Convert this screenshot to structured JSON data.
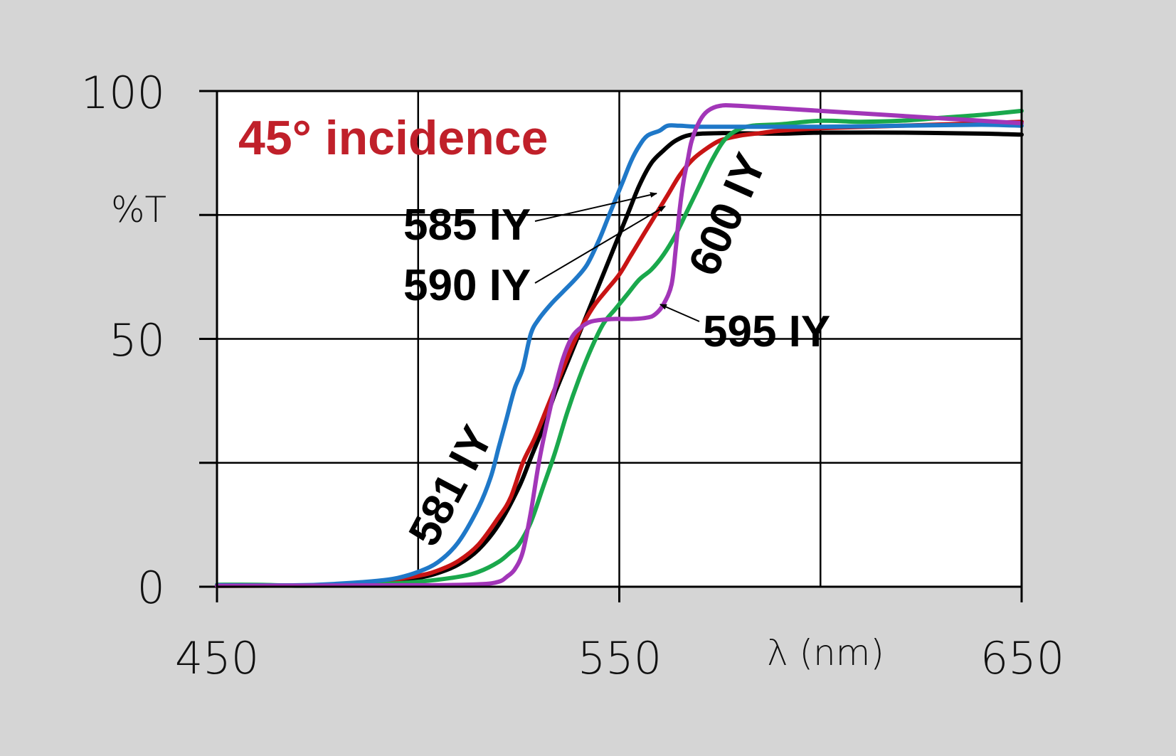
{
  "chart_data": {
    "type": "line",
    "title": "45° incidence",
    "ylabel": "%T",
    "xlabel": "λ (nm)",
    "xlim": [
      450,
      650
    ],
    "ylim": [
      0,
      100
    ],
    "x_ticks": [
      450,
      550,
      650
    ],
    "x_tick_labels": [
      "450",
      "550",
      "650"
    ],
    "x_grid": [
      450,
      500,
      550,
      600,
      650
    ],
    "y_ticks": [
      0,
      50,
      100
    ],
    "y_tick_labels": [
      "0",
      "50",
      "100"
    ],
    "y_grid": [
      0,
      25,
      50,
      75,
      100
    ],
    "grid": true,
    "legend": "none",
    "colors": {
      "background": "#d5d5d5",
      "plot_background": "#ffffff",
      "title": "#c0202a"
    },
    "series": [
      {
        "name": "581 IY",
        "color": "#1f78c8",
        "points": [
          [
            450,
            0.3
          ],
          [
            470,
            0.3
          ],
          [
            480,
            0.6
          ],
          [
            490,
            1.2
          ],
          [
            495,
            1.8
          ],
          [
            500,
            3
          ],
          [
            505,
            5
          ],
          [
            510,
            9
          ],
          [
            515,
            16
          ],
          [
            518,
            22
          ],
          [
            520,
            28
          ],
          [
            522,
            34
          ],
          [
            524,
            40
          ],
          [
            526,
            44
          ],
          [
            528,
            51
          ],
          [
            530,
            54
          ],
          [
            533,
            57
          ],
          [
            536,
            59.5
          ],
          [
            539,
            62
          ],
          [
            542,
            65
          ],
          [
            545,
            70
          ],
          [
            547,
            74
          ],
          [
            549,
            78
          ],
          [
            551,
            82
          ],
          [
            553,
            86
          ],
          [
            555,
            89
          ],
          [
            557,
            91
          ],
          [
            560,
            92
          ],
          [
            562,
            93
          ],
          [
            565,
            93
          ],
          [
            570,
            92.8
          ],
          [
            580,
            92.8
          ],
          [
            600,
            92.8
          ],
          [
            620,
            93
          ],
          [
            640,
            93.2
          ],
          [
            650,
            93
          ]
        ]
      },
      {
        "name": "585 IY",
        "color": "#000000",
        "points": [
          [
            450,
            0.2
          ],
          [
            480,
            0.3
          ],
          [
            490,
            0.8
          ],
          [
            500,
            1.8
          ],
          [
            505,
            2.8
          ],
          [
            510,
            4.5
          ],
          [
            515,
            7.5
          ],
          [
            520,
            12.5
          ],
          [
            525,
            20
          ],
          [
            528,
            26
          ],
          [
            531,
            32
          ],
          [
            534,
            39
          ],
          [
            537,
            45
          ],
          [
            540,
            51
          ],
          [
            543,
            57
          ],
          [
            546,
            63
          ],
          [
            549,
            69
          ],
          [
            552,
            75
          ],
          [
            555,
            81
          ],
          [
            558,
            85.5
          ],
          [
            561,
            88
          ],
          [
            564,
            90
          ],
          [
            568,
            91.2
          ],
          [
            575,
            91.5
          ],
          [
            590,
            91.4
          ],
          [
            600,
            91.6
          ],
          [
            620,
            91.6
          ],
          [
            640,
            91.4
          ],
          [
            650,
            91.2
          ]
        ]
      },
      {
        "name": "590 IY",
        "color": "#c81414",
        "points": [
          [
            450,
            0.2
          ],
          [
            480,
            0.3
          ],
          [
            490,
            1
          ],
          [
            500,
            2.2
          ],
          [
            505,
            3.3
          ],
          [
            510,
            5.2
          ],
          [
            515,
            8.5
          ],
          [
            520,
            14
          ],
          [
            523,
            18
          ],
          [
            526,
            25
          ],
          [
            529,
            30
          ],
          [
            532,
            36
          ],
          [
            535,
            42
          ],
          [
            538,
            48
          ],
          [
            541,
            53
          ],
          [
            544,
            57
          ],
          [
            547,
            60
          ],
          [
            550,
            63
          ],
          [
            553,
            67
          ],
          [
            556,
            71
          ],
          [
            559,
            75
          ],
          [
            562,
            79
          ],
          [
            565,
            83
          ],
          [
            568,
            86
          ],
          [
            571,
            88
          ],
          [
            575,
            90
          ],
          [
            580,
            91
          ],
          [
            585,
            91.5
          ],
          [
            590,
            92
          ],
          [
            600,
            92.5
          ],
          [
            620,
            93
          ],
          [
            640,
            93.5
          ],
          [
            650,
            93.8
          ]
        ]
      },
      {
        "name": "595 IY",
        "color": "#a236b8",
        "points": [
          [
            450,
            0.2
          ],
          [
            500,
            0.3
          ],
          [
            515,
            0.5
          ],
          [
            520,
            1
          ],
          [
            522,
            2
          ],
          [
            524,
            3.5
          ],
          [
            526,
            7
          ],
          [
            528,
            15
          ],
          [
            530,
            25
          ],
          [
            532,
            33
          ],
          [
            534,
            40
          ],
          [
            536,
            46
          ],
          [
            538,
            50
          ],
          [
            540,
            52
          ],
          [
            543,
            53.5
          ],
          [
            548,
            54
          ],
          [
            553,
            54
          ],
          [
            557,
            54.3
          ],
          [
            559,
            55
          ],
          [
            561,
            57
          ],
          [
            563,
            61
          ],
          [
            564,
            68
          ],
          [
            565,
            76
          ],
          [
            566,
            82
          ],
          [
            567,
            86
          ],
          [
            568,
            90
          ],
          [
            570,
            94
          ],
          [
            572,
            96
          ],
          [
            575,
            97
          ],
          [
            580,
            97
          ],
          [
            600,
            96
          ],
          [
            620,
            95
          ],
          [
            640,
            94
          ],
          [
            650,
            93.5
          ]
        ]
      },
      {
        "name": "600 IY",
        "color": "#1aa84c",
        "points": [
          [
            450,
            0.4
          ],
          [
            460,
            0.4
          ],
          [
            470,
            0.2
          ],
          [
            480,
            0.3
          ],
          [
            490,
            0.5
          ],
          [
            500,
            1
          ],
          [
            510,
            2
          ],
          [
            515,
            3
          ],
          [
            520,
            5
          ],
          [
            523,
            7
          ],
          [
            525,
            8.5
          ],
          [
            528,
            13
          ],
          [
            531,
            20
          ],
          [
            534,
            27
          ],
          [
            537,
            35
          ],
          [
            540,
            42
          ],
          [
            543,
            48
          ],
          [
            546,
            53
          ],
          [
            549,
            56
          ],
          [
            552,
            59
          ],
          [
            555,
            62
          ],
          [
            558,
            64
          ],
          [
            561,
            67
          ],
          [
            564,
            71
          ],
          [
            567,
            76
          ],
          [
            570,
            81
          ],
          [
            573,
            86
          ],
          [
            576,
            90
          ],
          [
            579,
            92
          ],
          [
            583,
            93
          ],
          [
            590,
            93.3
          ],
          [
            600,
            94
          ],
          [
            610,
            93.8
          ],
          [
            620,
            94
          ],
          [
            630,
            94.6
          ],
          [
            640,
            95.2
          ],
          [
            650,
            96
          ]
        ]
      }
    ],
    "annotations": [
      {
        "text": "581 IY",
        "x": 512,
        "y": 19,
        "angle": -62
      },
      {
        "text": "585 IY",
        "x": 513,
        "y": 73
      },
      {
        "text": "590 IY",
        "x": 513,
        "y": 61
      },
      {
        "text": "595 IY",
        "x": 583,
        "y": 50
      },
      {
        "text": "600 IY",
        "x": 580,
        "y": 76,
        "angle": -66
      }
    ]
  }
}
